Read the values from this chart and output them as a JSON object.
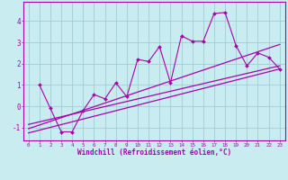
{
  "xlabel": "Windchill (Refroidissement éolien,°C)",
  "background_color": "#c8ecf0",
  "grid_color": "#a0ccd8",
  "line_color": "#aa00aa",
  "spine_color": "#aa00aa",
  "xlim": [
    -0.5,
    23.5
  ],
  "ylim": [
    -1.6,
    4.9
  ],
  "x_data": [
    1,
    2,
    3,
    4,
    5,
    6,
    7,
    8,
    9,
    10,
    11,
    12,
    13,
    14,
    15,
    16,
    17,
    18,
    19,
    20,
    21,
    22,
    23
  ],
  "y_scatter": [
    1.0,
    -0.1,
    -1.2,
    -1.2,
    -0.2,
    0.55,
    0.35,
    1.1,
    0.45,
    2.2,
    2.1,
    2.8,
    1.1,
    3.3,
    3.05,
    3.05,
    4.35,
    4.4,
    2.85,
    1.9,
    2.5,
    2.3,
    1.75
  ],
  "trend1_x": [
    0,
    23
  ],
  "trend1_y": [
    -1.25,
    1.75
  ],
  "trend2_x": [
    0,
    23
  ],
  "trend2_y": [
    -1.05,
    2.9
  ],
  "trend3_x": [
    0,
    23
  ],
  "trend3_y": [
    -0.85,
    1.9
  ],
  "xticks": [
    0,
    1,
    2,
    3,
    4,
    5,
    6,
    7,
    8,
    9,
    10,
    11,
    12,
    13,
    14,
    15,
    16,
    17,
    18,
    19,
    20,
    21,
    22,
    23
  ],
  "yticks": [
    -1,
    0,
    1,
    2,
    3,
    4
  ],
  "xlabel_fontsize": 5.5,
  "xtick_fontsize": 4.2,
  "ytick_fontsize": 5.5
}
